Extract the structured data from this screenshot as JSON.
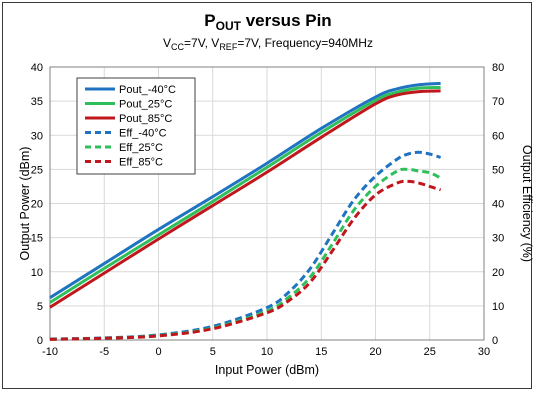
{
  "chart_data": {
    "type": "line",
    "title": {
      "main": "P",
      "sub": "OUT",
      "rest": " versus Pin"
    },
    "subtitle": {
      "parts": [
        {
          "text": "V",
          "sub": false
        },
        {
          "text": "CC",
          "sub": true
        },
        {
          "text": "=7V, V",
          "sub": false
        },
        {
          "text": "REF",
          "sub": true
        },
        {
          "text": "=7V, Frequency=940MHz",
          "sub": false
        }
      ]
    },
    "xlabel": "Input Power (dBm)",
    "ylabel": "Output Power (dBm)",
    "y2label": "Output Efficiency (%)",
    "xlim": [
      -10,
      30
    ],
    "ylim": [
      0,
      40
    ],
    "y2lim": [
      0,
      80
    ],
    "xticks": [
      -10,
      -5,
      0,
      5,
      10,
      15,
      20,
      25,
      30
    ],
    "yticks": [
      0,
      5,
      10,
      15,
      20,
      25,
      30,
      35,
      40
    ],
    "y2ticks": [
      0,
      10,
      20,
      30,
      40,
      50,
      60,
      70,
      80
    ],
    "grid": true,
    "legend_position": "top-left",
    "series": [
      {
        "name": "Pout_-40°C",
        "axis": "left",
        "style": "solid",
        "color": "#1f73c1",
        "x": [
          -10,
          -5,
          0,
          5,
          10,
          15,
          20,
          22,
          24,
          26
        ],
        "y": [
          6.2,
          11.2,
          16.2,
          21.0,
          25.9,
          31.0,
          35.6,
          36.8,
          37.4,
          37.6
        ]
      },
      {
        "name": "Pout_25°C",
        "axis": "left",
        "style": "solid",
        "color": "#2fbf5a",
        "x": [
          -10,
          -5,
          0,
          5,
          10,
          15,
          20,
          22,
          24,
          26
        ],
        "y": [
          5.5,
          10.5,
          15.4,
          20.3,
          25.3,
          30.4,
          35.1,
          36.3,
          36.9,
          37.0
        ]
      },
      {
        "name": "Pout_85°C",
        "axis": "left",
        "style": "solid",
        "color": "#c0171d",
        "x": [
          -10,
          -5,
          0,
          5,
          10,
          15,
          20,
          22,
          24,
          26
        ],
        "y": [
          4.8,
          9.8,
          14.8,
          19.7,
          24.6,
          29.7,
          34.6,
          35.9,
          36.4,
          36.5
        ]
      },
      {
        "name": "Eff_-40°C",
        "axis": "right",
        "style": "dashed",
        "color": "#1f73c1",
        "x": [
          -10,
          -5,
          0,
          5,
          10,
          12,
          14,
          16,
          18,
          20,
          22,
          23,
          24,
          25,
          26
        ],
        "y": [
          0.3,
          0.6,
          1.5,
          4.0,
          9.5,
          14.0,
          21.0,
          31.0,
          41.0,
          48.0,
          53.0,
          54.5,
          55.0,
          54.5,
          53.5
        ]
      },
      {
        "name": "Eff_25°C",
        "axis": "right",
        "style": "dashed",
        "color": "#2fbf5a",
        "x": [
          -10,
          -5,
          0,
          5,
          10,
          12,
          14,
          16,
          18,
          20,
          22,
          23,
          24,
          25,
          26
        ],
        "y": [
          0.2,
          0.5,
          1.3,
          3.5,
          8.5,
          12.5,
          18.5,
          28.0,
          38.0,
          45.0,
          49.5,
          50.0,
          49.5,
          49.0,
          47.5
        ]
      },
      {
        "name": "Eff_85°C",
        "axis": "right",
        "style": "dashed",
        "color": "#c0171d",
        "x": [
          -10,
          -5,
          0,
          5,
          10,
          12,
          14,
          16,
          18,
          20,
          22,
          23,
          24,
          25,
          26
        ],
        "y": [
          0.2,
          0.5,
          1.2,
          3.3,
          8.0,
          11.5,
          17.0,
          26.0,
          35.5,
          42.5,
          46.0,
          46.5,
          46.0,
          45.0,
          44.0
        ]
      }
    ]
  }
}
